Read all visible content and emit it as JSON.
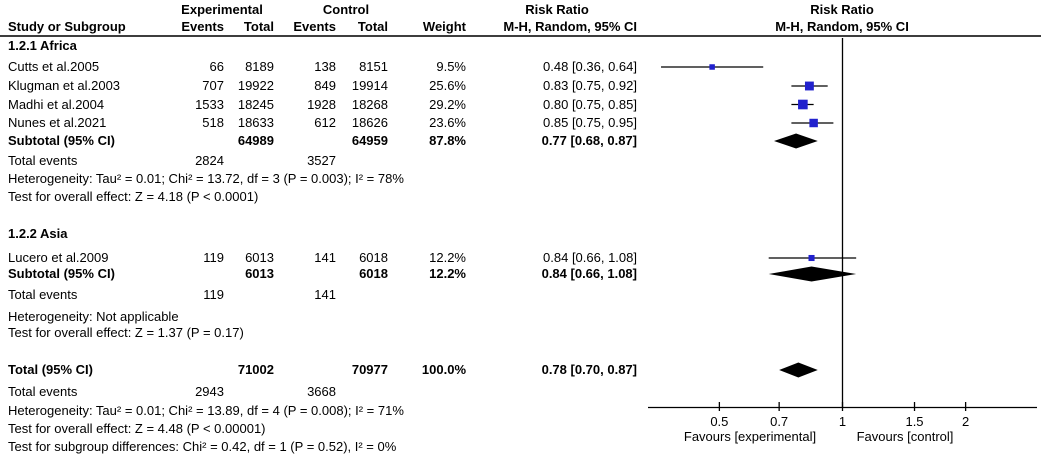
{
  "header": {
    "experimental": "Experimental",
    "control": "Control",
    "risk_ratio": "Risk Ratio",
    "study_or_subgroup": "Study or Subgroup",
    "events": "Events",
    "total": "Total",
    "weight": "Weight",
    "mh_random_ci": "M-H, Random, 95% CI"
  },
  "chart_data": {
    "type": "forest_plot",
    "effect_measure": "Risk Ratio",
    "method_label": "M-H, Random, 95% CI",
    "axis": {
      "scale": "log",
      "null_value": 1,
      "ticks": [
        0.5,
        0.7,
        1,
        1.5,
        2
      ],
      "tick_labels": [
        "0.5",
        "0.7",
        "1",
        "1.5",
        "2"
      ],
      "favours_left": "Favours [experimental]",
      "favours_right": "Favours [control]"
    },
    "colors": {
      "study_marker": "#2121cd",
      "pooled_diamond": "#000000",
      "lines": "#000000",
      "header_rule": "#3d3d3d"
    },
    "rows": [
      {
        "type": "subgroup_header",
        "label": "1.2.1 Africa"
      },
      {
        "type": "study",
        "label": "Cutts et al.2005",
        "events_exp": "66",
        "total_exp": "8189",
        "events_ctrl": "138",
        "total_ctrl": "8151",
        "weight": "9.5%",
        "rr_ci": "0.48 [0.36, 0.64]",
        "rr": 0.48,
        "ci_low": 0.36,
        "ci_high": 0.64,
        "weight_pct": 9.5
      },
      {
        "type": "study",
        "label": "Klugman et al.2003",
        "events_exp": "707",
        "total_exp": "19922",
        "events_ctrl": "849",
        "total_ctrl": "19914",
        "weight": "25.6%",
        "rr_ci": "0.83 [0.75, 0.92]",
        "rr": 0.83,
        "ci_low": 0.75,
        "ci_high": 0.92,
        "weight_pct": 25.6
      },
      {
        "type": "study",
        "label": "Madhi et al.2004",
        "events_exp": "1533",
        "total_exp": "18245",
        "events_ctrl": "1928",
        "total_ctrl": "18268",
        "weight": "29.2%",
        "rr_ci": "0.80 [0.75, 0.85]",
        "rr": 0.8,
        "ci_low": 0.75,
        "ci_high": 0.85,
        "weight_pct": 29.2
      },
      {
        "type": "study",
        "label": "Nunes et al.2021",
        "events_exp": "518",
        "total_exp": "18633",
        "events_ctrl": "612",
        "total_ctrl": "18626",
        "weight": "23.6%",
        "rr_ci": "0.85 [0.75, 0.95]",
        "rr": 0.85,
        "ci_low": 0.75,
        "ci_high": 0.95,
        "weight_pct": 23.6
      },
      {
        "type": "subtotal",
        "label": "Subtotal (95% CI)",
        "total_exp": "64989",
        "total_ctrl": "64959",
        "weight": "87.8%",
        "rr_ci": "0.77 [0.68, 0.87]",
        "rr": 0.77,
        "ci_low": 0.68,
        "ci_high": 0.87
      },
      {
        "type": "total_events",
        "label": "Total events",
        "events_exp": "2824",
        "events_ctrl": "3527"
      },
      {
        "type": "note",
        "label": "Heterogeneity: Tau² = 0.01; Chi² = 13.72, df = 3 (P = 0.003); I² = 78%"
      },
      {
        "type": "note",
        "label": "Test for overall effect: Z = 4.18 (P < 0.0001)"
      },
      {
        "type": "subgroup_header",
        "label": "1.2.2 Asia"
      },
      {
        "type": "study",
        "label": "Lucero et al.2009",
        "events_exp": "119",
        "total_exp": "6013",
        "events_ctrl": "141",
        "total_ctrl": "6018",
        "weight": "12.2%",
        "rr_ci": "0.84 [0.66, 1.08]",
        "rr": 0.84,
        "ci_low": 0.66,
        "ci_high": 1.08,
        "weight_pct": 12.2
      },
      {
        "type": "subtotal",
        "label": "Subtotal (95% CI)",
        "total_exp": "6013",
        "total_ctrl": "6018",
        "weight": "12.2%",
        "rr_ci": "0.84 [0.66, 1.08]",
        "rr": 0.84,
        "ci_low": 0.66,
        "ci_high": 1.08
      },
      {
        "type": "total_events",
        "label": "Total events",
        "events_exp": "119",
        "events_ctrl": "141"
      },
      {
        "type": "note",
        "label": "Heterogeneity: Not applicable"
      },
      {
        "type": "note",
        "label": "Test for overall effect: Z = 1.37 (P = 0.17)"
      },
      {
        "type": "total",
        "label": "Total (95% CI)",
        "total_exp": "71002",
        "total_ctrl": "70977",
        "weight": "100.0%",
        "rr_ci": "0.78 [0.70, 0.87]",
        "rr": 0.78,
        "ci_low": 0.7,
        "ci_high": 0.87
      },
      {
        "type": "total_events",
        "label": "Total events",
        "events_exp": "2943",
        "events_ctrl": "3668"
      },
      {
        "type": "note",
        "label": "Heterogeneity: Tau² = 0.01; Chi² = 13.89, df = 4 (P = 0.008); I² = 71%"
      },
      {
        "type": "note",
        "label": "Test for overall effect: Z = 4.48 (P < 0.00001)"
      },
      {
        "type": "note",
        "label": "Test for subgroup differences: Chi² = 0.42, df = 1 (P = 0.52), I² = 0%"
      }
    ]
  }
}
